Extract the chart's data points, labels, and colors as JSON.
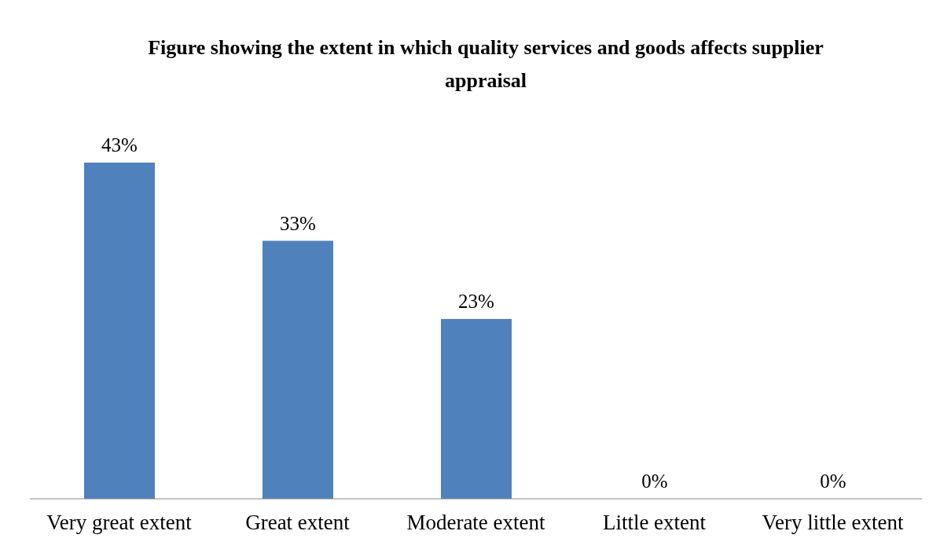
{
  "chart_data": {
    "type": "bar",
    "title": "Figure showing the extent in which quality services and goods affects supplier appraisal",
    "categories": [
      "Very great extent",
      "Great extent",
      "Moderate extent",
      "Little extent",
      "Very little extent"
    ],
    "values": [
      43,
      33,
      23,
      0,
      0
    ],
    "value_labels": [
      "43%",
      "33%",
      "23%",
      "0%",
      "0%"
    ],
    "color": "#4f81bd"
  }
}
